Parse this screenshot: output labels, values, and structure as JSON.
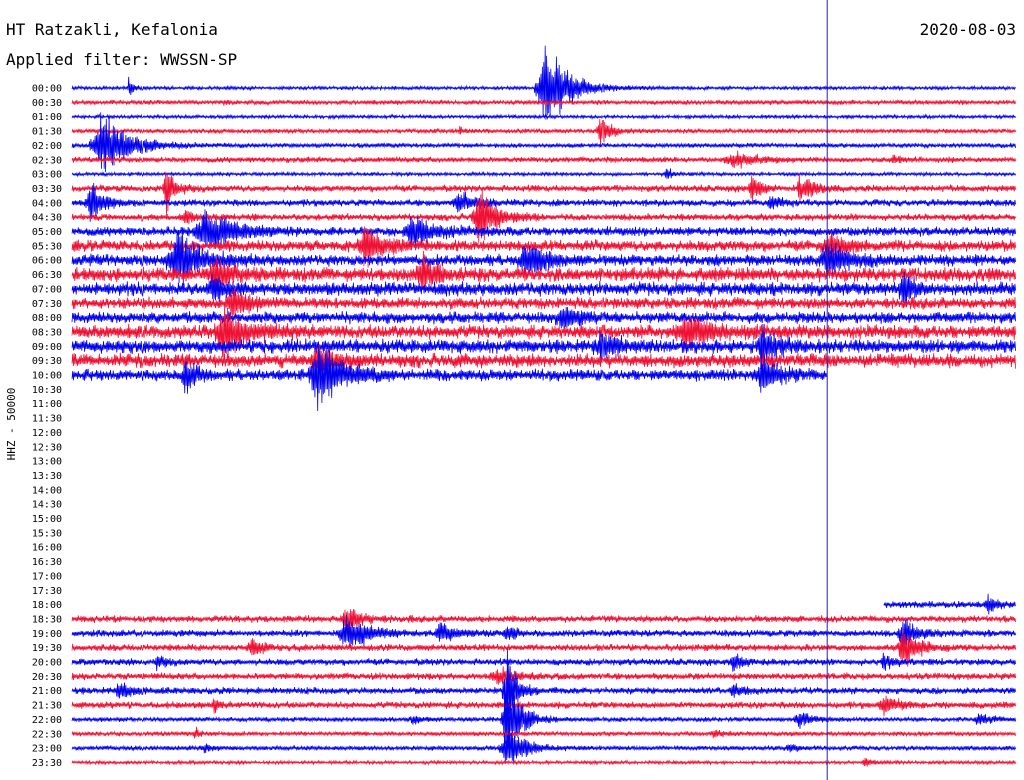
{
  "header": {
    "station": "HT Ratzakli, Kefalonia",
    "filter_text": "Applied filter: WWSSN-SP",
    "date": "2020-08-03"
  },
  "chart_data": {
    "type": "line",
    "title": "HT Ratzakli, Kefalonia",
    "subtitle": "Applied filter: WWSSN-SP",
    "date": "2020-08-03",
    "ylabel": "HHZ - 50000",
    "ytick_labels": [
      "00:00",
      "00:30",
      "01:00",
      "01:30",
      "02:00",
      "02:30",
      "03:00",
      "03:30",
      "04:00",
      "04:30",
      "05:00",
      "05:30",
      "06:00",
      "06:30",
      "07:00",
      "07:30",
      "08:00",
      "08:30",
      "09:00",
      "09:30",
      "10:00",
      "10:30",
      "11:00",
      "11:30",
      "12:00",
      "12:30",
      "13:00",
      "13:30",
      "14:00",
      "14:30",
      "15:00",
      "15:30",
      "16:00",
      "16:30",
      "17:00",
      "17:30",
      "18:00",
      "18:30",
      "19:00",
      "19:30",
      "20:00",
      "20:30",
      "21:00",
      "21:30",
      "22:00",
      "22:30",
      "23:00",
      "23:30"
    ],
    "trace_colors": [
      "#0000ee",
      "#ee1133"
    ],
    "rows_minutes_span": 30,
    "marker_minute": 24,
    "series": [
      {
        "label": "00:00",
        "start": 0,
        "end": 1,
        "noise": 1.5,
        "events": [
          [
            0.06,
            14,
            0.01
          ],
          [
            0.5,
            60,
            0.05
          ]
        ]
      },
      {
        "label": "00:30",
        "start": 0,
        "end": 1,
        "noise": 2,
        "events": [
          [
            0.16,
            3,
            0.01
          ]
        ]
      },
      {
        "label": "01:00",
        "start": 0,
        "end": 1,
        "noise": 1.5,
        "events": []
      },
      {
        "label": "01:30",
        "start": 0,
        "end": 1,
        "noise": 2,
        "events": [
          [
            0.56,
            22,
            0.02
          ],
          [
            0.41,
            4,
            0.01
          ]
        ]
      },
      {
        "label": "02:00",
        "start": 0,
        "end": 1,
        "noise": 2,
        "events": [
          [
            0.03,
            40,
            0.06
          ]
        ]
      },
      {
        "label": "02:30",
        "start": 0,
        "end": 1,
        "noise": 2.5,
        "events": [
          [
            0.7,
            9,
            0.05
          ],
          [
            0.87,
            5,
            0.02
          ]
        ]
      },
      {
        "label": "03:00",
        "start": 0,
        "end": 1,
        "noise": 1.5,
        "events": [
          [
            0.63,
            10,
            0.01
          ]
        ]
      },
      {
        "label": "03:30",
        "start": 0,
        "end": 1,
        "noise": 3,
        "events": [
          [
            0.1,
            28,
            0.02
          ],
          [
            0.72,
            16,
            0.02
          ],
          [
            0.77,
            22,
            0.01
          ],
          [
            0.78,
            10,
            0.03
          ]
        ]
      },
      {
        "label": "04:00",
        "start": 0,
        "end": 1,
        "noise": 3,
        "events": [
          [
            0.02,
            25,
            0.03
          ],
          [
            0.41,
            12,
            0.04
          ],
          [
            0.74,
            10,
            0.02
          ]
        ]
      },
      {
        "label": "04:30",
        "start": 0,
        "end": 1,
        "noise": 3,
        "events": [
          [
            0.43,
            35,
            0.04
          ],
          [
            0.12,
            10,
            0.02
          ]
        ]
      },
      {
        "label": "05:00",
        "start": 0,
        "end": 1,
        "noise": 4,
        "events": [
          [
            0.14,
            30,
            0.06
          ],
          [
            0.36,
            20,
            0.05
          ]
        ]
      },
      {
        "label": "05:30",
        "start": 0,
        "end": 1,
        "noise": 5,
        "events": [
          [
            0.31,
            25,
            0.04
          ],
          [
            0.8,
            15,
            0.04
          ]
        ]
      },
      {
        "label": "06:00",
        "start": 0,
        "end": 1,
        "noise": 5,
        "events": [
          [
            0.11,
            35,
            0.05
          ],
          [
            0.48,
            25,
            0.04
          ],
          [
            0.8,
            20,
            0.05
          ]
        ]
      },
      {
        "label": "06:30",
        "start": 0,
        "end": 1,
        "noise": 6,
        "events": [
          [
            0.37,
            25,
            0.03
          ],
          [
            0.15,
            18,
            0.04
          ]
        ]
      },
      {
        "label": "07:00",
        "start": 0,
        "end": 1,
        "noise": 6,
        "events": [
          [
            0.88,
            25,
            0.02
          ],
          [
            0.15,
            15,
            0.03
          ]
        ]
      },
      {
        "label": "07:30",
        "start": 0,
        "end": 1,
        "noise": 5,
        "events": [
          [
            0.17,
            18,
            0.04
          ]
        ]
      },
      {
        "label": "08:00",
        "start": 0,
        "end": 1,
        "noise": 5,
        "events": [
          [
            0.52,
            15,
            0.04
          ]
        ]
      },
      {
        "label": "08:30",
        "start": 0,
        "end": 1,
        "noise": 6,
        "events": [
          [
            0.16,
            30,
            0.05
          ],
          [
            0.65,
            20,
            0.06
          ]
        ]
      },
      {
        "label": "09:00",
        "start": 0,
        "end": 1,
        "noise": 6,
        "events": [
          [
            0.73,
            25,
            0.03
          ],
          [
            0.56,
            15,
            0.04
          ]
        ]
      },
      {
        "label": "09:30",
        "start": 0,
        "end": 1,
        "noise": 6,
        "events": [
          [
            0.26,
            18,
            0.04
          ]
        ]
      },
      {
        "label": "10:00",
        "start": 0,
        "end": 0.8,
        "noise": 5,
        "events": [
          [
            0.26,
            45,
            0.05
          ],
          [
            0.12,
            25,
            0.02
          ],
          [
            0.73,
            20,
            0.04
          ]
        ]
      },
      {
        "label": "18:00",
        "start": 0.86,
        "end": 1,
        "noise": 3,
        "events": [
          [
            0.97,
            10,
            0.02
          ]
        ]
      },
      {
        "label": "18:30",
        "start": 0,
        "end": 1,
        "noise": 3,
        "events": [
          [
            0.29,
            20,
            0.03
          ]
        ]
      },
      {
        "label": "19:00",
        "start": 0,
        "end": 1,
        "noise": 3,
        "events": [
          [
            0.29,
            22,
            0.05
          ],
          [
            0.39,
            12,
            0.03
          ],
          [
            0.88,
            20,
            0.03
          ],
          [
            0.46,
            10,
            0.02
          ]
        ]
      },
      {
        "label": "19:30",
        "start": 0,
        "end": 1,
        "noise": 3,
        "events": [
          [
            0.88,
            30,
            0.03
          ],
          [
            0.19,
            10,
            0.03
          ]
        ]
      },
      {
        "label": "20:00",
        "start": 0,
        "end": 1,
        "noise": 3,
        "events": [
          [
            0.09,
            8,
            0.02
          ],
          [
            0.7,
            10,
            0.02
          ],
          [
            0.86,
            10,
            0.02
          ]
        ]
      },
      {
        "label": "20:30",
        "start": 0,
        "end": 1,
        "noise": 3,
        "events": [
          [
            0.45,
            10,
            0.04
          ]
        ]
      },
      {
        "label": "21:00",
        "start": 0,
        "end": 1,
        "noise": 3,
        "events": [
          [
            0.46,
            60,
            0.02
          ],
          [
            0.05,
            10,
            0.03
          ],
          [
            0.7,
            10,
            0.02
          ]
        ]
      },
      {
        "label": "21:30",
        "start": 0,
        "end": 1,
        "noise": 3,
        "events": [
          [
            0.86,
            12,
            0.03
          ],
          [
            0.15,
            10,
            0.01
          ]
        ]
      },
      {
        "label": "22:00",
        "start": 0,
        "end": 1,
        "noise": 2,
        "events": [
          [
            0.46,
            60,
            0.03
          ],
          [
            0.77,
            10,
            0.03
          ],
          [
            0.36,
            6,
            0.02
          ],
          [
            0.96,
            8,
            0.03
          ]
        ]
      },
      {
        "label": "22:30",
        "start": 0,
        "end": 1,
        "noise": 2,
        "events": [
          [
            0.13,
            8,
            0.01
          ],
          [
            0.68,
            6,
            0.02
          ]
        ]
      },
      {
        "label": "23:00",
        "start": 0,
        "end": 1,
        "noise": 2,
        "events": [
          [
            0.46,
            30,
            0.04
          ],
          [
            0.14,
            6,
            0.02
          ],
          [
            0.76,
            5,
            0.02
          ]
        ]
      },
      {
        "label": "23:30",
        "start": 0,
        "end": 1,
        "noise": 1.5,
        "events": [
          [
            0.84,
            5,
            0.02
          ]
        ]
      }
    ]
  }
}
